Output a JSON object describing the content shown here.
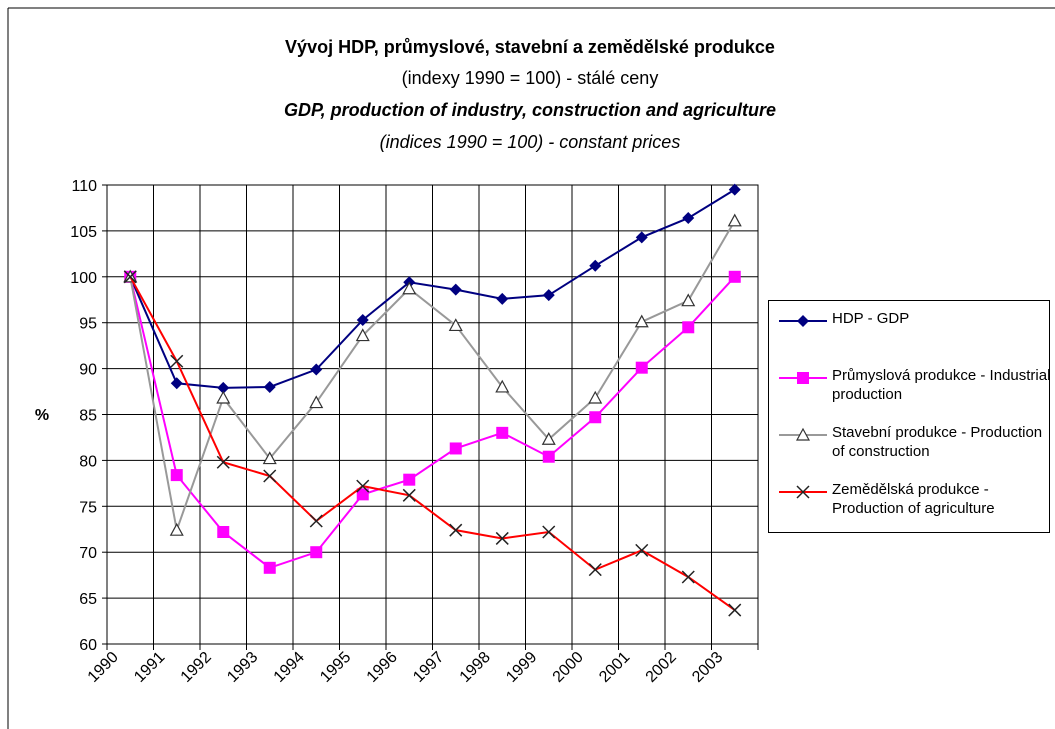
{
  "chart_data": {
    "type": "line",
    "title": "Vývoj HDP, průmyslové, stavební a zemědělské produkce",
    "subtitle": "(indexy 1990 = 100) - stálé ceny",
    "title_en": "GDP, production of industry, construction and agriculture",
    "subtitle_en": "(indices 1990 = 100) - constant prices",
    "y_label": "%",
    "categories": [
      "1990",
      "1991",
      "1992",
      "1993",
      "1994",
      "1995",
      "1996",
      "1997",
      "1998",
      "1999",
      "2000",
      "2001",
      "2002",
      "2003"
    ],
    "ylim": [
      60,
      110
    ],
    "yticks": [
      60,
      65,
      70,
      75,
      80,
      85,
      90,
      95,
      100,
      105,
      110
    ],
    "grid": true,
    "legend": "right",
    "series": [
      {
        "name": "HDP - GDP",
        "color": "#000080",
        "marker": "diamond",
        "values": [
          100,
          88.4,
          87.9,
          88.0,
          89.9,
          95.3,
          99.4,
          98.6,
          97.6,
          98.0,
          101.2,
          104.3,
          106.4,
          109.5
        ]
      },
      {
        "name": "Průmyslová produkce - Industrial production",
        "color": "#ff00ff",
        "marker": "square",
        "values": [
          100,
          78.4,
          72.2,
          68.3,
          70.0,
          76.3,
          77.9,
          81.3,
          83.0,
          80.4,
          84.7,
          90.1,
          94.5,
          100.0
        ]
      },
      {
        "name": "Stavební produkce - Production of construction",
        "color": "#999999",
        "marker": "triangle",
        "values": [
          100,
          72.4,
          86.8,
          80.2,
          86.3,
          93.6,
          98.7,
          94.7,
          88.0,
          82.3,
          86.8,
          95.1,
          97.4,
          106.1
        ]
      },
      {
        "name": "Zemědělská produkce - Production of agriculture",
        "color": "#ff0000",
        "marker": "x",
        "values": [
          100,
          90.8,
          79.8,
          78.3,
          73.4,
          77.2,
          76.2,
          72.4,
          71.5,
          72.2,
          68.1,
          70.2,
          67.3,
          63.7
        ]
      }
    ]
  }
}
